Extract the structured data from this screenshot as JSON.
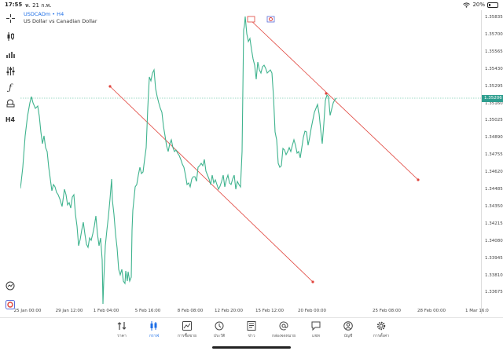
{
  "status_bar": {
    "time": "17:55",
    "date": "พ. 21 ก.พ.",
    "battery": "20%",
    "battery_level": 0.2
  },
  "chart": {
    "symbol": "USDCADm • H4",
    "description": "US Dollar vs Canadian Dollar",
    "line_color": "#3fb38e",
    "trend_color": "#e0433b",
    "current_price": "1.35206",
    "price_labels": [
      "1.35835",
      "1.35700",
      "1.35565",
      "1.35430",
      "1.35295",
      "1.35160",
      "1.35025",
      "1.34890",
      "1.34755",
      "1.34620",
      "1.34485",
      "1.34350",
      "1.34215",
      "1.34080",
      "1.33945",
      "1.33810",
      "1.33675"
    ],
    "time_labels": [
      "25 Jan 00:00",
      "29 Jan 12:00",
      "1 Feb 04:00",
      "5 Feb 16:00",
      "8 Feb 08:00",
      "12 Feb 20:00",
      "15 Feb 12:00",
      "20 Feb 00:00",
      "25 Feb 08:00",
      "28 Feb 00:00",
      "1 Mar 16:0"
    ]
  },
  "left_tools": [
    {
      "name": "crosshair-icon"
    },
    {
      "name": "candlestick-icon"
    },
    {
      "name": "bar-chart-icon"
    },
    {
      "name": "settings-sliders-icon"
    },
    {
      "name": "function-icon"
    },
    {
      "name": "objects-icon"
    },
    {
      "name": "timeframe-label",
      "label": "H4"
    },
    {
      "name": "zoom-icon"
    },
    {
      "name": "app-logo-icon"
    }
  ],
  "bottom_nav": [
    {
      "id": "quotes",
      "label": "ราคา"
    },
    {
      "id": "chart",
      "label": "กราฟ"
    },
    {
      "id": "trade",
      "label": "การซื้อขาย"
    },
    {
      "id": "history",
      "label": "ประวัติ"
    },
    {
      "id": "news",
      "label": "ข่าว"
    },
    {
      "id": "mailbox",
      "label": "กล่องจดหมาย"
    },
    {
      "id": "chat",
      "label": "แชท"
    },
    {
      "id": "accounts",
      "label": "บัญชี"
    },
    {
      "id": "settings",
      "label": "การตั้งค่า"
    }
  ],
  "active_tab": "chart"
}
